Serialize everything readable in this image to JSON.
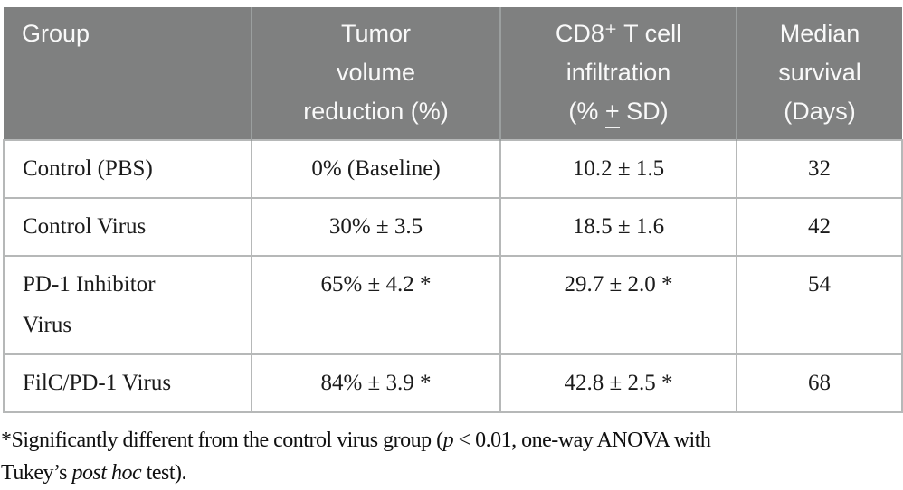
{
  "table": {
    "header": {
      "group": "Group",
      "tumor": "Tumor\nvolume\nreduction (%)",
      "cd8_main": "CD8⁺ T cell\ninfiltration",
      "cd8_unit_open": "(% ",
      "cd8_unit_pm": "+",
      "cd8_unit_close": " SD)",
      "survival": "Median\nsurvival\n(Days)"
    },
    "rows": [
      {
        "group": "Control (PBS)",
        "tumor": "0% (Baseline)",
        "cd8": "10.2 ± 1.5",
        "survival": "32"
      },
      {
        "group": "Control Virus",
        "tumor": "30% ± 3.5",
        "cd8": "18.5 ± 1.6",
        "survival": "42"
      },
      {
        "group": "PD-1 Inhibitor\nVirus",
        "tumor": "65% ± 4.2 *",
        "cd8": "29.7 ± 2.0 *",
        "survival": "54"
      },
      {
        "group": "FilC/PD-1 Virus",
        "tumor": "84% ± 3.9 *",
        "cd8": "42.8 ± 2.5 *",
        "survival": "68"
      }
    ]
  },
  "footnote": {
    "part1": "*Significantly different from the control virus group (",
    "part2_italic": "p",
    "part3": " < 0.01, one-way ANOVA with\nTukey’s ",
    "part4_italic": "post hoc",
    "part5": " test)."
  },
  "colors": {
    "header_bg": "#7f8080",
    "header_text": "#f9f9f9",
    "header_divider": "#9b9f9f",
    "body_border": "#b6b8b8",
    "body_text": "#1b1b1b"
  }
}
